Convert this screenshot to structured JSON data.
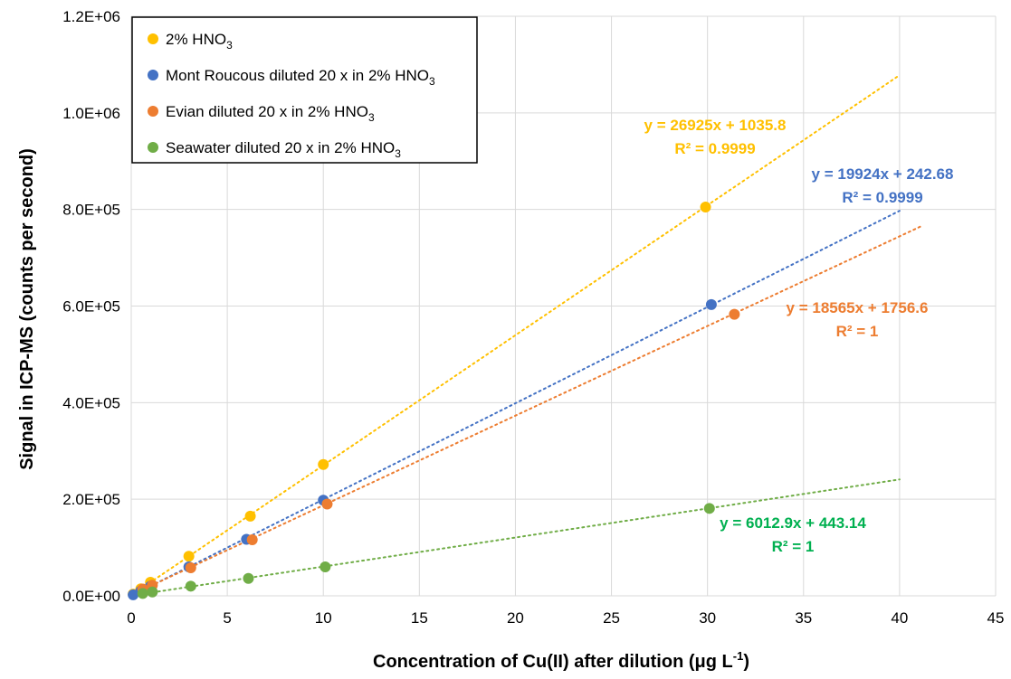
{
  "chart_data": {
    "type": "scatter",
    "xlabel": "Concentration of Cu(II) after dilution (μg L",
    "xlabel_sup": "-1",
    "xlabel_tail": ")",
    "ylabel": "Signal in ICP-MS (counts per second)",
    "xlim": [
      0,
      45
    ],
    "ylim": [
      0,
      1200000
    ],
    "x_ticks": [
      0,
      5,
      10,
      15,
      20,
      25,
      30,
      35,
      40,
      45
    ],
    "x_tick_labels": [
      "0",
      "5",
      "10",
      "15",
      "20",
      "25",
      "30",
      "35",
      "40",
      "45"
    ],
    "y_ticks": [
      0,
      200000,
      400000,
      600000,
      800000,
      1000000,
      1200000
    ],
    "y_tick_labels": [
      "0.0E+00",
      "2.0E+05",
      "4.0E+05",
      "6.0E+05",
      "8.0E+05",
      "1.0E+06",
      "1.2E+06"
    ],
    "grid": true,
    "legend_position": "top-left",
    "series": [
      {
        "name": "2% HNO",
        "name_sub": "3",
        "color": "#FFC000",
        "x": [
          0.1,
          0.5,
          1.0,
          3.0,
          6.2,
          10.0,
          29.9
        ],
        "y": [
          3500,
          14500,
          28000,
          82000,
          165000,
          272000,
          805000
        ],
        "trendline": {
          "slope": 26925,
          "intercept": 1035.8,
          "x_end": 40
        },
        "equation": "y = 26925x + 1035.8",
        "r2": "R² = 0.9999"
      },
      {
        "name": "Mont Roucous diluted 20 x in 2% HNO",
        "name_sub": "3",
        "color": "#4472C4",
        "x": [
          0.1,
          0.5,
          1.0,
          3.0,
          6.0,
          10.0,
          30.2
        ],
        "y": [
          2000,
          10000,
          20000,
          60000,
          117000,
          198000,
          603000
        ],
        "trendline": {
          "slope": 19924,
          "intercept": 242.68,
          "x_end": 40
        },
        "equation": "y = 19924x + 242.68",
        "r2": "R² = 0.9999"
      },
      {
        "name": "Evian diluted 20 x in 2% HNO",
        "name_sub": "3",
        "color": "#ED7D31",
        "x": [
          0.6,
          1.1,
          3.1,
          6.3,
          10.2,
          31.4
        ],
        "y": [
          14000,
          22000,
          58000,
          116000,
          190000,
          583000
        ],
        "trendline": {
          "slope": 18565,
          "intercept": 1756.6,
          "x_end": 41.2
        },
        "equation": "y = 18565x + 1756.6",
        "r2": "R² = 1"
      },
      {
        "name": "Seawater diluted 20 x in 2% HNO",
        "name_sub": "3",
        "color": "#70AD47",
        "x": [
          0.6,
          1.1,
          3.1,
          6.1,
          10.1,
          30.1
        ],
        "y": [
          5000,
          8000,
          20000,
          36000,
          60000,
          181000
        ],
        "trendline": {
          "slope": 6012.9,
          "intercept": 443.14,
          "x_end": 40
        },
        "equation": "y = 6012.9x + 443.14",
        "r2": "R² = 1",
        "label_color": "#00B050"
      }
    ]
  }
}
